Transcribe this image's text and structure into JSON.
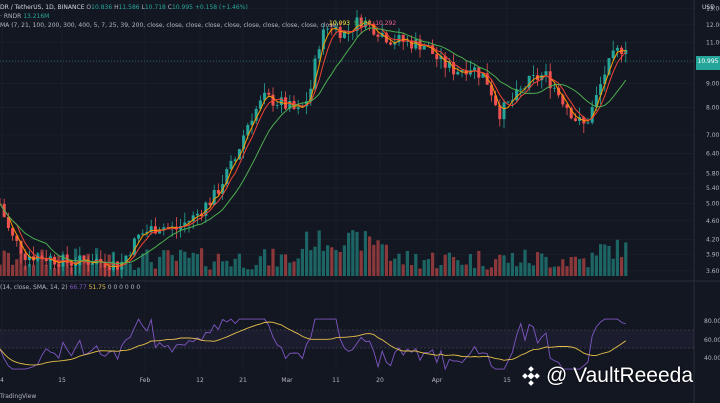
{
  "header": {
    "pair": "DR / TetherUS, 1D, BINANCE",
    "ohlc": [
      {
        "k": "O",
        "v": "10.836"
      },
      {
        "k": "H",
        "v": "11.586"
      },
      {
        "k": "L",
        "v": "10.718"
      },
      {
        "k": "C",
        "v": "10.995"
      }
    ],
    "change": "+0.158 (+1.46%)",
    "volume_label": "· RNDR",
    "volume_value": "13.216M",
    "ma_label": "MA (7, 21, 100, 200, 300, 400, 5, 7, 25, 39, 200, close, close, close, close, close, close, close, close, close, close)",
    "ma_values": [
      "10.093",
      "9.265",
      "10.292"
    ],
    "currency": "USD"
  },
  "rsi": {
    "label": "(14, close, SMA, 14, 2)",
    "value1": "66.77",
    "value2": "51.75",
    "extra": "0 0 0 0 0 0"
  },
  "watermark": "@ VaultReeeda",
  "footer": "TradingView",
  "colors": {
    "bg": "#131722",
    "up": "#26a69a",
    "down": "#ef5350",
    "ma_fast": "#ff9800",
    "ma_mid": "#f44336",
    "ma_slow": "#4caf50",
    "rsi_line": "#7e57c2",
    "rsi_ma": "#e6c04a",
    "grid": "#1e222d"
  },
  "chart_data": {
    "type": "candlestick",
    "y_axis_scale": "log",
    "price_ticks": [
      13.0,
      12.0,
      11.0,
      10.0,
      9.0,
      8.0,
      7.0,
      6.4,
      5.8,
      5.4,
      5.0,
      4.6,
      4.2,
      3.9,
      3.6
    ],
    "price_tick_labels": [
      "13.00",
      "12.00",
      "11.00",
      "10.00",
      "9.00",
      "8.00",
      "7.00",
      "6.40",
      "5.80",
      "5.40",
      "5.00",
      "4.60",
      "4.20",
      "3.90",
      "3.60"
    ],
    "last_price": "10.995",
    "x_tick_labels": [
      "4",
      "15",
      "Feb",
      "12",
      "21",
      "Mar",
      "11",
      "20",
      "Apr",
      "15"
    ],
    "rsi_ticks": [
      "80.00",
      "60.00",
      "40.00"
    ],
    "legend": [
      "MA",
      "Volume",
      "RSI"
    ]
  }
}
